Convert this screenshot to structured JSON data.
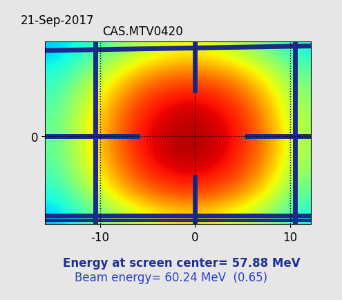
{
  "chart_data": {
    "type": "heatmap",
    "title": "CAS.MTV0420",
    "annotations": [
      "21-Sep-2017",
      "Energy at screen center= 57.88 MeV",
      "Beam energy= 60.24 MeV  (0.65)"
    ],
    "xlim": [
      -15.8,
      12.2
    ],
    "ylim": [
      -9.5,
      10.2
    ],
    "xticks": [
      -10,
      0,
      10
    ],
    "yticks": [
      0
    ],
    "grid": true,
    "color": "jet",
    "zlim": [
      0,
      1
    ],
    "z": [
      [
        0.32,
        0.38,
        0.45,
        0.52,
        0.58,
        0.62,
        0.64,
        0.62,
        0.58,
        0.52,
        0.45,
        0.38
      ],
      [
        0.38,
        0.45,
        0.55,
        0.63,
        0.7,
        0.74,
        0.76,
        0.74,
        0.7,
        0.63,
        0.55,
        0.45
      ],
      [
        0.42,
        0.52,
        0.62,
        0.72,
        0.8,
        0.84,
        0.86,
        0.84,
        0.8,
        0.72,
        0.62,
        0.5
      ],
      [
        0.45,
        0.56,
        0.67,
        0.78,
        0.86,
        0.9,
        0.92,
        0.9,
        0.86,
        0.78,
        0.66,
        0.53
      ],
      [
        0.47,
        0.58,
        0.7,
        0.81,
        0.89,
        0.93,
        0.95,
        0.93,
        0.89,
        0.81,
        0.69,
        0.55
      ],
      [
        0.47,
        0.58,
        0.7,
        0.82,
        0.9,
        0.94,
        0.96,
        0.94,
        0.9,
        0.82,
        0.7,
        0.55
      ],
      [
        0.46,
        0.57,
        0.69,
        0.8,
        0.88,
        0.93,
        0.94,
        0.93,
        0.88,
        0.8,
        0.68,
        0.54
      ],
      [
        0.43,
        0.54,
        0.65,
        0.76,
        0.84,
        0.88,
        0.9,
        0.88,
        0.84,
        0.76,
        0.64,
        0.5
      ],
      [
        0.38,
        0.48,
        0.58,
        0.68,
        0.75,
        0.8,
        0.82,
        0.8,
        0.75,
        0.68,
        0.57,
        0.45
      ],
      [
        0.32,
        0.4,
        0.48,
        0.56,
        0.62,
        0.66,
        0.68,
        0.66,
        0.62,
        0.56,
        0.48,
        0.38
      ]
    ]
  }
}
